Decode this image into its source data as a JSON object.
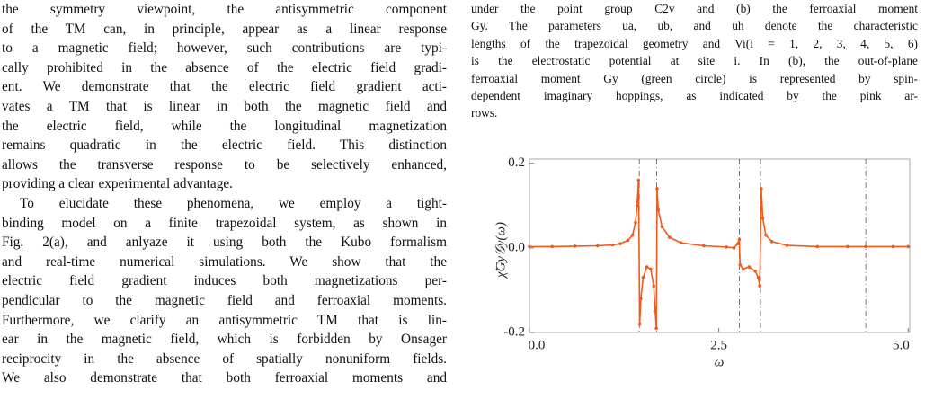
{
  "left_column": {
    "paragraphs": [
      [
        "the symmetry viewpoint, the antisymmetric component",
        "of the TM can, in principle, appear as a linear response",
        "to a magnetic field; however, such contributions are typi-",
        "cally prohibited in the absence of the electric field gradi-",
        "ent. We demonstrate that the electric field gradient acti-",
        "vates a TM that is linear in both the magnetic field and",
        "the electric field, while the longitudinal magnetization",
        "remains quadratic in the electric field. This distinction",
        "allows the transverse response to be selectively enhanced,",
        "providing a clear experimental advantage."
      ],
      [
        "To elucidate these phenomena, we employ a tight-",
        "binding model on a finite trapezoidal system, as shown in",
        "Fig. 2(a), and anlyaze it using both the Kubo formalism",
        "and real-time numerical simulations. We show that the",
        "electric field gradient induces both magnetizations per-",
        "pendicular to the magnetic field and ferroaxial moments.",
        "Furthermore, we clarify an antisymmetric TM that is lin-",
        "ear in the magnetic field, which is forbidden by Onsager",
        "reciprocity in the absence of spatially nonuniform fields.",
        "We also demonstrate that both ferroaxial moments and"
      ]
    ]
  },
  "caption": {
    "lines": [
      "under the point group C2v and (b) the ferroaxial moment",
      "Gy. The parameters ua, ub, and uh denote the characteristic",
      "lengths of the trapezoidal geometry and Vi(i = 1, 2, 3, 4, 5, 6)",
      "is the electrostatic potential at site i. In (b), the out-of-plane",
      "ferroaxial moment Gy (green circle) is represented by spin-",
      "dependent imaginary hoppings, as indicated by the pink ar-",
      "rows."
    ]
  },
  "chart_data": {
    "type": "line",
    "x_label": "ω",
    "y_label": "χ̃Gy𝒢y(ω)",
    "x": [
      0.0,
      0.3,
      0.6,
      0.9,
      1.1,
      1.2,
      1.3,
      1.36,
      1.4,
      1.42,
      1.44,
      1.455,
      1.47,
      1.5,
      1.55,
      1.6,
      1.64,
      1.66,
      1.675,
      1.685,
      1.7,
      1.75,
      1.85,
      2.0,
      2.3,
      2.6,
      2.7,
      2.75,
      2.77,
      2.78,
      2.82,
      2.9,
      2.98,
      3.02,
      3.04,
      3.06,
      3.08,
      3.12,
      3.2,
      3.4,
      3.8,
      4.2,
      4.44,
      4.8,
      5.0
    ],
    "values": [
      0.003,
      0.003,
      0.004,
      0.005,
      0.007,
      0.01,
      0.018,
      0.03,
      0.06,
      0.1,
      0.16,
      -0.18,
      -0.12,
      -0.07,
      -0.045,
      -0.05,
      -0.09,
      -0.15,
      -0.19,
      0.14,
      0.09,
      0.05,
      0.025,
      0.012,
      0.005,
      0.002,
      0.0,
      0.01,
      0.02,
      -0.04,
      -0.05,
      -0.045,
      -0.055,
      -0.07,
      -0.09,
      0.14,
      0.07,
      0.03,
      0.015,
      0.006,
      0.003,
      0.003,
      0.003,
      0.003,
      0.003
    ],
    "color": "#f05a1e",
    "vlines": [
      1.45,
      1.68,
      2.77,
      3.05,
      4.44
    ],
    "xlim": [
      0,
      5.02
    ],
    "ylim": [
      -0.2,
      0.21
    ],
    "xticks": [
      {
        "value": 0,
        "label": "0.0"
      },
      2.5,
      {
        "value": 5,
        "label": "5.0"
      }
    ],
    "yticks": [
      0.2,
      {
        "value": 0,
        "label": "0.0"
      },
      -0.2
    ]
  }
}
